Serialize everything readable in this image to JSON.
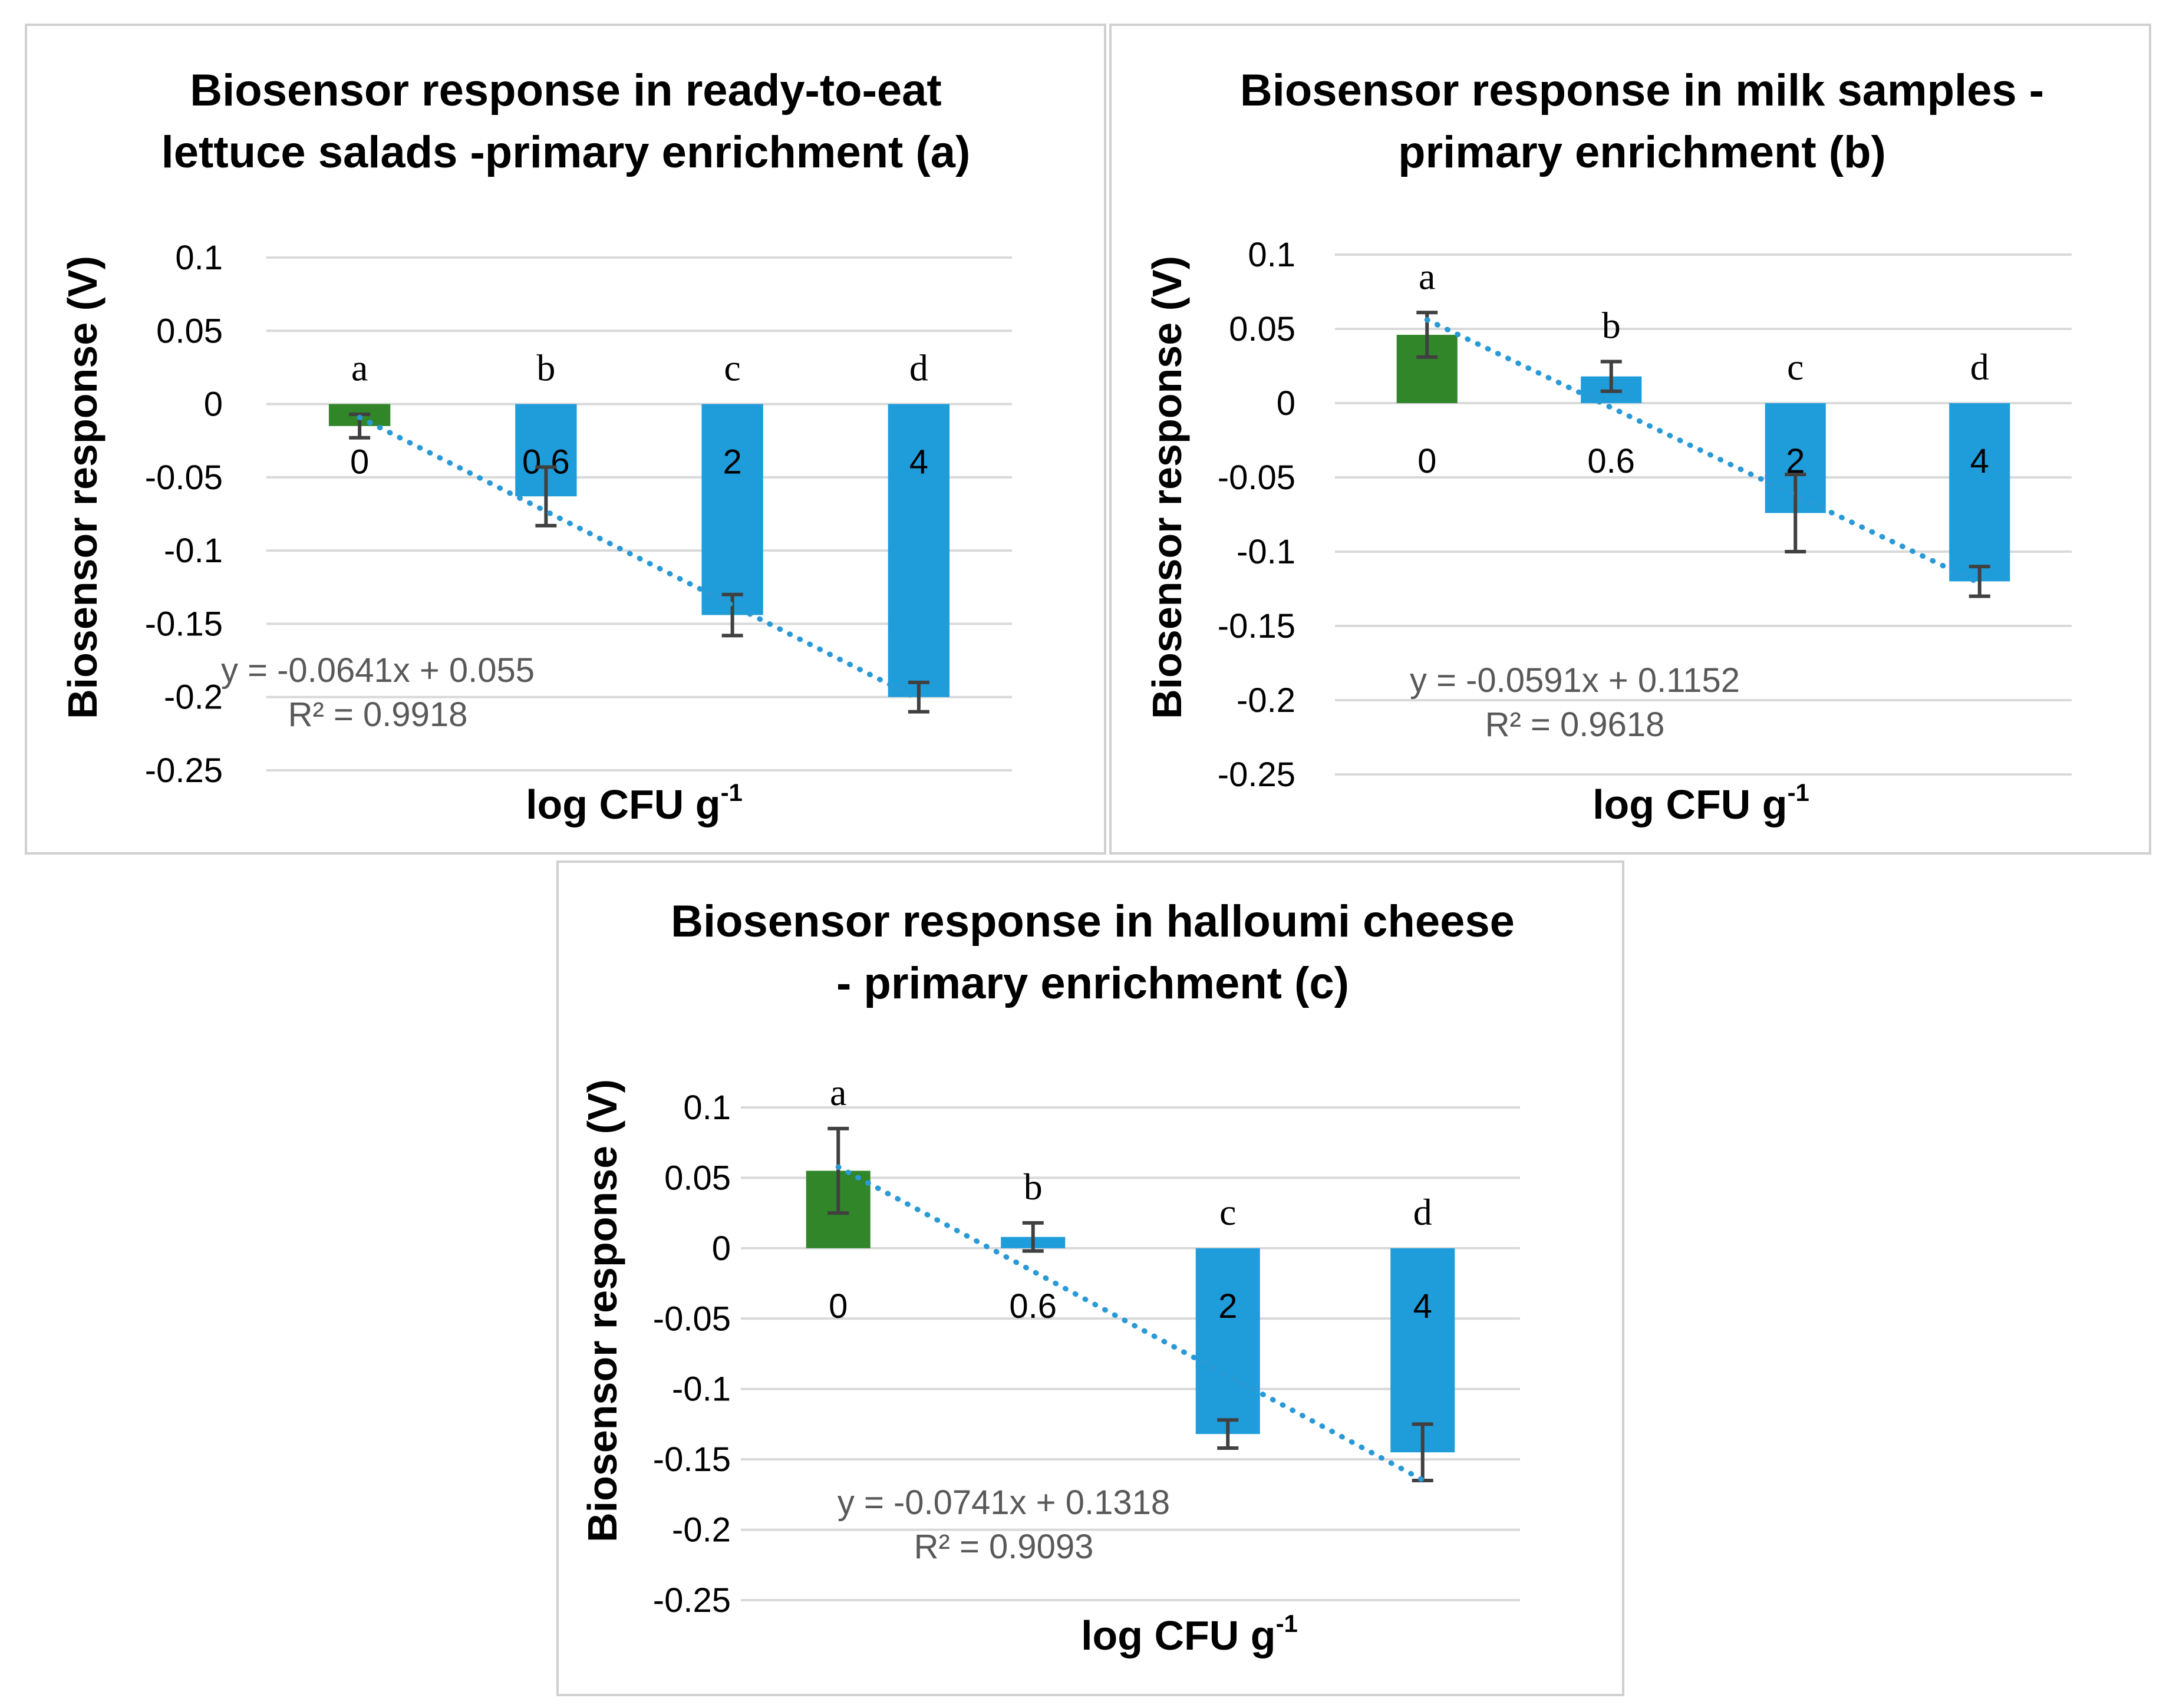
{
  "chart_data": [
    {
      "type": "bar",
      "title_line1": "Biosensor response in ready-to-eat",
      "title_line2": "lettuce salads -primary enrichment (a)",
      "xlabel": "log CFU g",
      "xlabel_sup": "-1",
      "ylabel": "Biosensor response (V)",
      "ylim": [
        -0.25,
        0.1
      ],
      "yticks": [
        0.1,
        0.05,
        0,
        -0.05,
        -0.1,
        -0.15,
        -0.2,
        -0.25
      ],
      "ytick_labels": [
        "0.1",
        "0.05",
        "0",
        "-0.05",
        "-0.1",
        "-0.15",
        "-0.2",
        "-0.25"
      ],
      "categories": [
        "0",
        "0.6",
        "2",
        "4"
      ],
      "values": [
        -0.015,
        -0.063,
        -0.144,
        -0.2
      ],
      "errors": [
        0.008,
        0.02,
        0.014,
        0.01
      ],
      "letters": [
        "a",
        "b",
        "c",
        "d"
      ],
      "bar_colors": [
        "#31862a",
        "#1f9ddb",
        "#1f9ddb",
        "#1f9ddb"
      ],
      "trendline": {
        "slope": -0.0641,
        "intercept": 0.055
      },
      "equation": "y = -0.0641x + 0.055",
      "r2": "R² = 0.9918",
      "grid": true
    },
    {
      "type": "bar",
      "title_line1": "Biosensor response in milk samples  -",
      "title_line2": "primary enrichment (b)",
      "xlabel": "log CFU g",
      "xlabel_sup": "-1",
      "ylabel": "Biosensor response (V)",
      "ylim": [
        -0.25,
        0.1
      ],
      "yticks": [
        0.1,
        0.05,
        0,
        -0.05,
        -0.1,
        -0.15,
        -0.2,
        -0.25
      ],
      "ytick_labels": [
        "0.1",
        "0.05",
        "0",
        "-0.05",
        "-0.1",
        "-0.15",
        "-0.2",
        "-0.25"
      ],
      "categories": [
        "0",
        "0.6",
        "2",
        "4"
      ],
      "values": [
        0.046,
        0.018,
        -0.074,
        -0.12
      ],
      "errors": [
        0.015,
        0.01,
        0.026,
        0.01
      ],
      "letters": [
        "a",
        "b",
        "c",
        "d"
      ],
      "bar_colors": [
        "#31862a",
        "#1f9ddb",
        "#1f9ddb",
        "#1f9ddb"
      ],
      "trendline": {
        "slope": -0.0591,
        "intercept": 0.1152
      },
      "equation": "y = -0.0591x + 0.1152",
      "r2": "R² = 0.9618",
      "grid": true
    },
    {
      "type": "bar",
      "title_line1": "Biosensor response in halloumi cheese",
      "title_line2": "- primary enrichment (c)",
      "xlabel": "log CFU g",
      "xlabel_sup": "-1",
      "ylabel": "Biosensor response (V)",
      "ylim": [
        -0.25,
        0.1
      ],
      "yticks": [
        0.1,
        0.05,
        0,
        -0.05,
        -0.1,
        -0.15,
        -0.2,
        -0.25
      ],
      "ytick_labels": [
        "0.1",
        "0.05",
        "0",
        "-0.05",
        "-0.1",
        "-0.15",
        "-0.2",
        "-0.25"
      ],
      "categories": [
        "0",
        "0.6",
        "2",
        "4"
      ],
      "values": [
        0.055,
        0.008,
        -0.132,
        -0.145
      ],
      "errors": [
        0.03,
        0.01,
        0.01,
        0.02
      ],
      "letters": [
        "a",
        "b",
        "c",
        "d"
      ],
      "bar_colors": [
        "#31862a",
        "#1f9ddb",
        "#1f9ddb",
        "#1f9ddb"
      ],
      "trendline": {
        "slope": -0.0741,
        "intercept": 0.1318
      },
      "equation": "y = -0.0741x + 0.1318",
      "r2": "R² = 0.9093",
      "grid": true
    }
  ]
}
